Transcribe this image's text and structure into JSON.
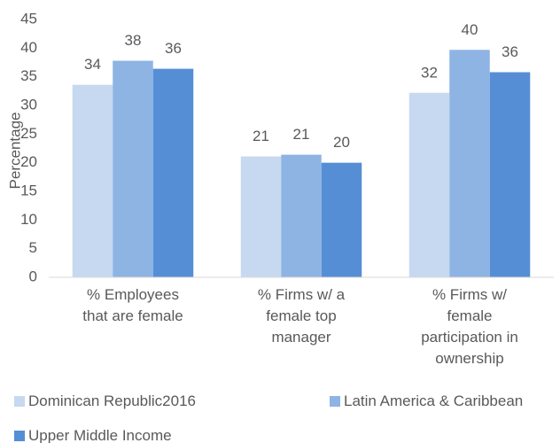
{
  "chart_data": {
    "type": "bar",
    "y_label": "Percentage",
    "categories": [
      "% Employees that are female",
      "% Firms w/ a female top manager",
      "% Firms w/ female participation in ownership"
    ],
    "series": [
      {
        "name": "Dominican Republic2016",
        "color": "#c6d9f0",
        "values": [
          33.6,
          21.1,
          32.2
        ],
        "value_labels": [
          "34",
          "21",
          "32"
        ]
      },
      {
        "name": "Latin America & Caribbean",
        "color": "#8eb4e3",
        "values": [
          37.8,
          21.4,
          39.7
        ],
        "value_labels": [
          "38",
          "21",
          "40"
        ]
      },
      {
        "name": "Upper Middle Income",
        "color": "#558ed5",
        "values": [
          36.4,
          20.0,
          35.8
        ],
        "value_labels": [
          "36",
          "20",
          "36"
        ]
      }
    ],
    "ylim": [
      0,
      45
    ],
    "yticks": [
      0,
      5,
      10,
      15,
      20,
      25,
      30,
      35,
      40,
      45
    ],
    "grid": false,
    "legend": "bottom"
  }
}
